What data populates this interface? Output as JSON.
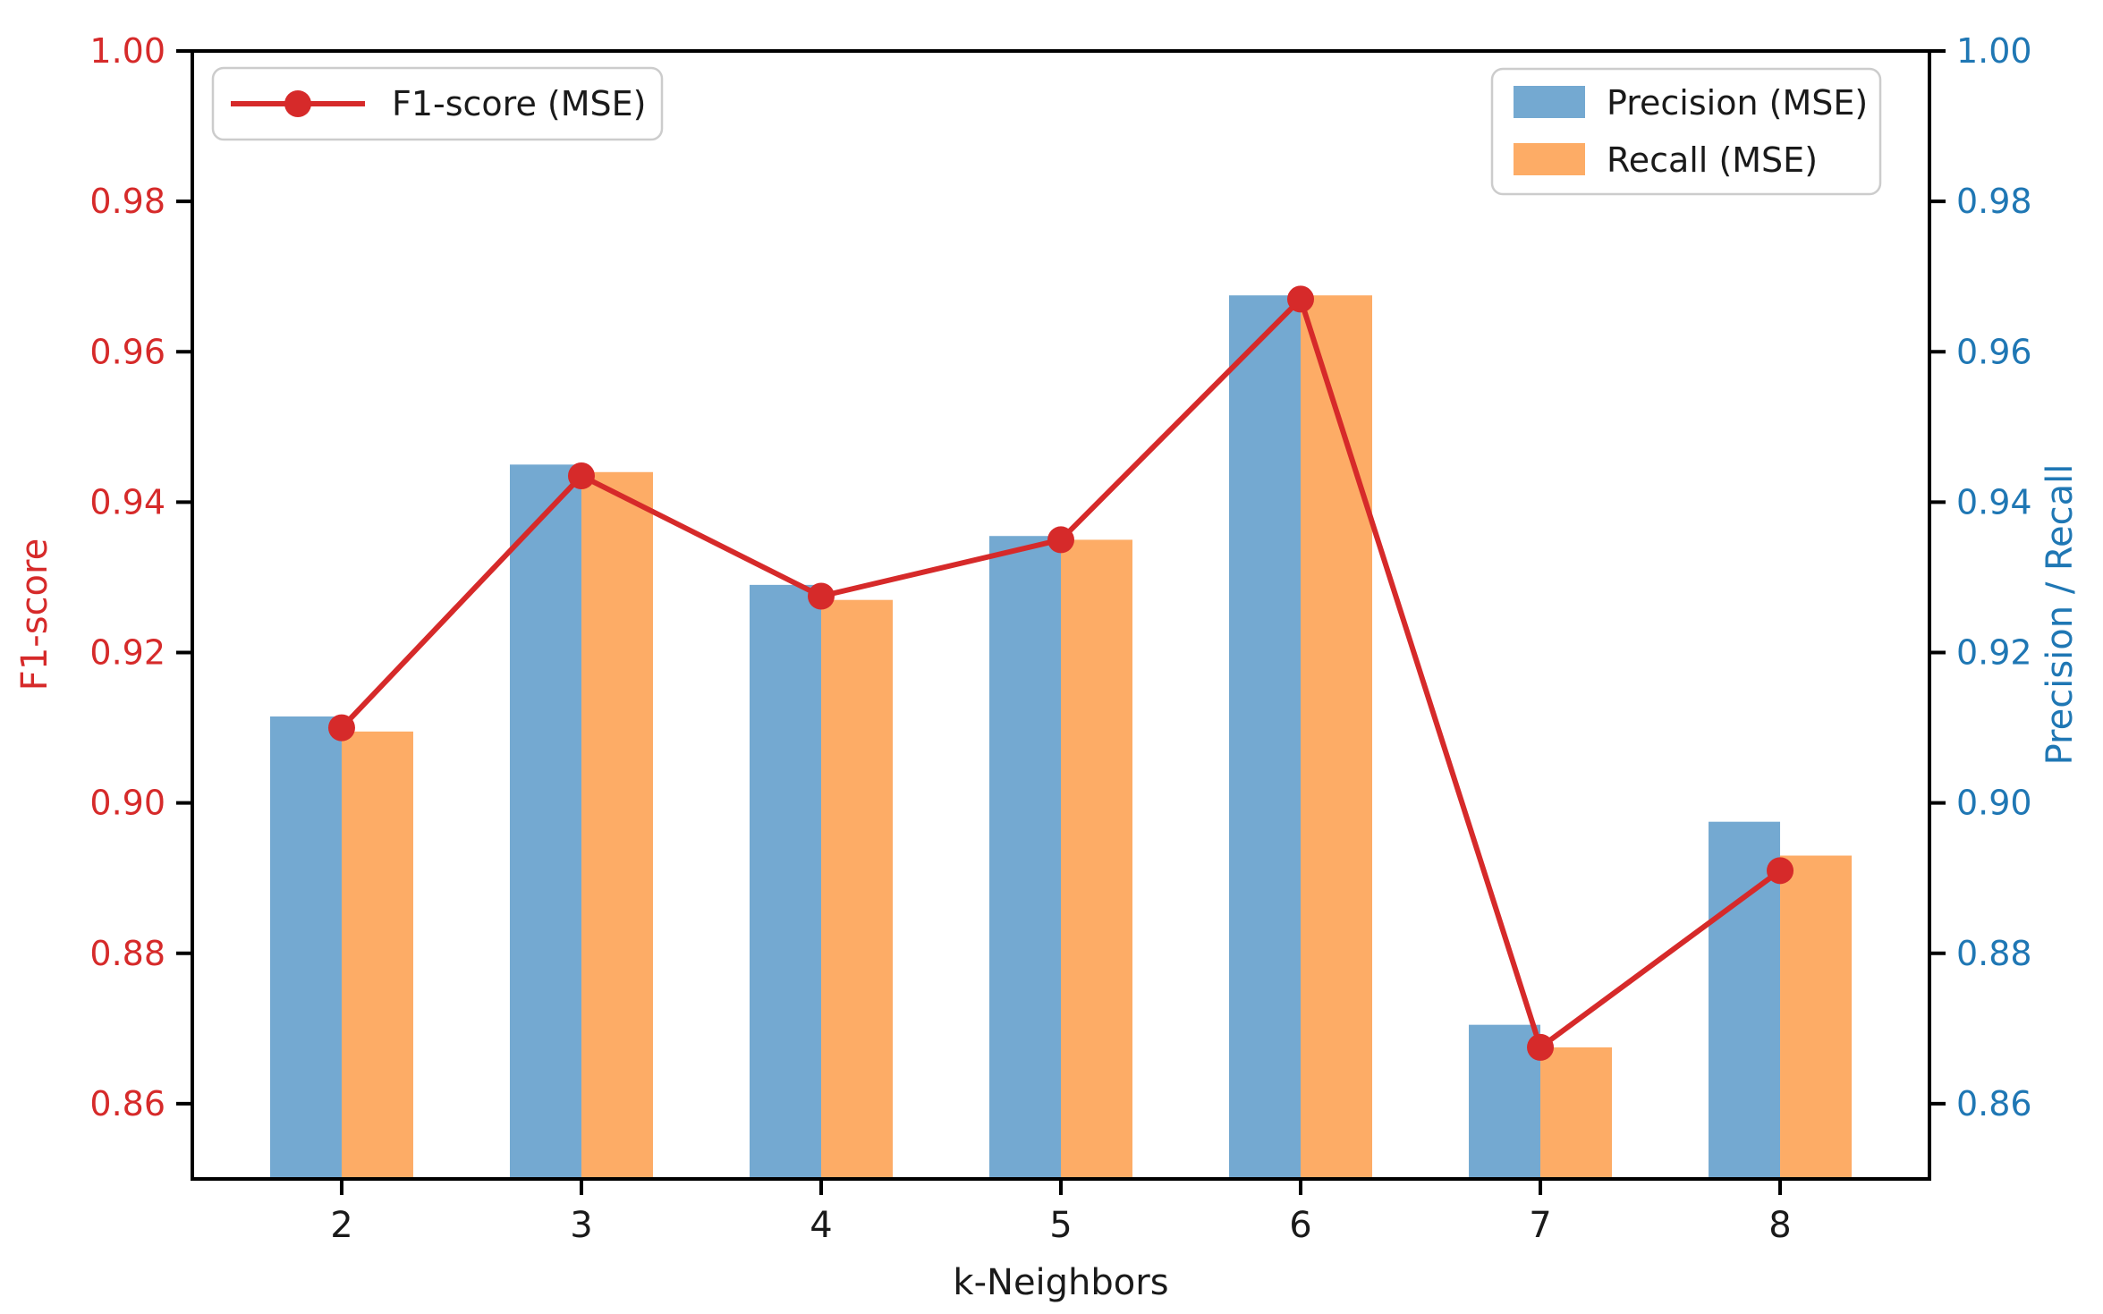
{
  "chart_data": {
    "type": "bar",
    "subtype": "grouped-bars-with-line-overlay",
    "title": "",
    "xlabel": "k-Neighbors",
    "ylabel_left": "F1-score",
    "ylabel_right": "Precision / Recall",
    "categories": [
      2,
      3,
      4,
      5,
      6,
      7,
      8
    ],
    "xtick_labels": [
      "2",
      "3",
      "4",
      "5",
      "6",
      "7",
      "8"
    ],
    "ylim": [
      0.85,
      1.0
    ],
    "xlim": [
      1.377,
      8.623
    ],
    "ytick_values": [
      1.0,
      0.98,
      0.96,
      0.94,
      0.92,
      0.9,
      0.88,
      0.86
    ],
    "ytick_labels": [
      "1.00",
      "0.98",
      "0.96",
      "0.94",
      "0.92",
      "0.90",
      "0.88",
      "0.86"
    ],
    "grid": false,
    "series": [
      {
        "name": "Precision (MSE)",
        "type": "bar",
        "axis": "right",
        "color": "#74a9d1",
        "values": [
          0.9115,
          0.945,
          0.929,
          0.9355,
          0.9675,
          0.8705,
          0.8975
        ]
      },
      {
        "name": "Recall (MSE)",
        "type": "bar",
        "axis": "right",
        "color": "#fdac66",
        "values": [
          0.9095,
          0.944,
          0.927,
          0.935,
          0.9675,
          0.8675,
          0.893
        ]
      },
      {
        "name": "F1-score (MSE)",
        "type": "line",
        "axis": "left",
        "color": "#d62a2a",
        "values": [
          0.91,
          0.9435,
          0.9275,
          0.935,
          0.967,
          0.8675,
          0.891
        ]
      }
    ],
    "legend_line": {
      "position": "upper-left",
      "label": "F1-score (MSE)"
    },
    "legend_bars": {
      "position": "upper-right",
      "labels": [
        "Precision (MSE)",
        "Recall (MSE)"
      ]
    },
    "colors": {
      "left_axis_text": "#d62a2a",
      "right_axis_text": "#1f77b4",
      "xtick_text": "#1a1a1a",
      "spine": "#000000",
      "legend_border": "#cccccc",
      "legend_bg": "#ffffff"
    }
  }
}
